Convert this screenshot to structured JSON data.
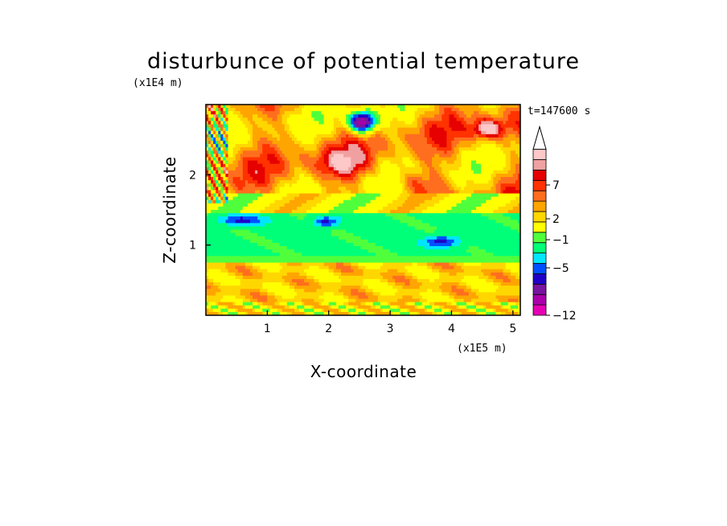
{
  "chart_data": {
    "type": "heatmap",
    "title": "disturbunce of potential temperature",
    "time_label": "t=147600 s",
    "xlabel": "X-coordinate",
    "ylabel": "Z-coordinate",
    "x_unit": "(x1E5 m)",
    "y_unit": "(x1E4 m)",
    "xlim": [
      0,
      5.12
    ],
    "ylim": [
      0,
      3.0
    ],
    "x_ticks": [
      "1",
      "2",
      "3",
      "4",
      "5"
    ],
    "y_ticks": [
      "1",
      "2"
    ],
    "colorbar": {
      "labels": [
        "7",
        "2",
        "−1",
        "−5",
        "−12"
      ],
      "levels": [
        -12,
        -10,
        -8,
        -6,
        -5,
        -4,
        -3,
        -2,
        -1,
        1,
        2,
        3,
        4,
        5,
        6,
        7,
        8,
        9
      ],
      "colors": [
        "#e600b4",
        "#aa00aa",
        "#7814a0",
        "#2000c8",
        "#0050ff",
        "#00e6ff",
        "#00ff78",
        "#50ff3c",
        "#ffff00",
        "#ffd700",
        "#ffa500",
        "#ff6e1e",
        "#ff3200",
        "#e60000",
        "#f0a0a0",
        "#ffc8c8"
      ],
      "extend": "max"
    }
  }
}
